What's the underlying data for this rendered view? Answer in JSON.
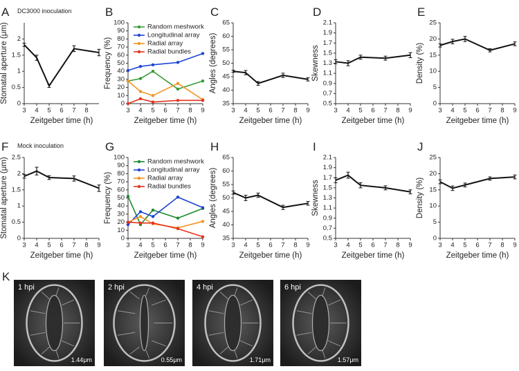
{
  "chart_data": [
    {
      "type": "line",
      "label": "A",
      "annotation": "DC3000 inoculation",
      "xlabel": "Zeitgeber time (h)",
      "ylabel": "Stomatal aperture (μm)",
      "x": [
        3,
        4,
        5,
        7,
        9
      ],
      "xlim": [
        3,
        9
      ],
      "xticks": [
        3,
        4,
        5,
        6,
        7,
        8
      ],
      "ylim": [
        0,
        2.5
      ],
      "yticks": [
        0,
        0.5,
        1,
        1.5,
        2
      ],
      "series": [
        {
          "color": "#111111",
          "values": [
            1.82,
            1.42,
            0.55,
            1.7,
            1.58
          ],
          "errors": [
            0.05,
            0.08,
            0.05,
            0.09,
            0.1
          ]
        }
      ]
    },
    {
      "type": "line",
      "label": "B",
      "xlabel": "Zeitgeber time (h)",
      "ylabel": "Frequency (%)",
      "x": [
        3,
        4,
        5,
        7,
        9
      ],
      "xlim": [
        3,
        9
      ],
      "xticks": [
        3,
        4,
        5,
        6,
        7,
        8,
        9
      ],
      "ylim": [
        0,
        100
      ],
      "yticks": [
        0,
        10,
        20,
        30,
        40,
        50,
        60,
        70,
        80,
        90,
        100
      ],
      "legend": "upper left",
      "series": [
        {
          "name": "Random meshwork",
          "color": "#3a9a35",
          "values": [
            28,
            31,
            40,
            18,
            28
          ]
        },
        {
          "name": "Longitudinal array",
          "color": "#1f44d6",
          "values": [
            41,
            46,
            48,
            51,
            62
          ]
        },
        {
          "name": "Radial array",
          "color": "#f39325",
          "values": [
            28,
            15,
            10,
            25,
            5
          ]
        },
        {
          "name": "Radial bundles",
          "color": "#e2331e",
          "values": [
            0,
            6,
            2,
            4,
            4
          ]
        }
      ]
    },
    {
      "type": "line",
      "label": "C",
      "xlabel": "Zeitgeber time (h)",
      "ylabel": "Angles (degrees)",
      "x": [
        3,
        4,
        5,
        7,
        9
      ],
      "xlim": [
        3,
        9
      ],
      "xticks": [
        3,
        4,
        5,
        6,
        7,
        8,
        9
      ],
      "ylim": [
        35,
        65
      ],
      "yticks": [
        35,
        40,
        45,
        50,
        55,
        60,
        65
      ],
      "series": [
        {
          "color": "#111111",
          "values": [
            47,
            46.5,
            42.5,
            45.5,
            44
          ],
          "errors": [
            0.4,
            0.8,
            0.7,
            0.8,
            0.6
          ]
        }
      ]
    },
    {
      "type": "line",
      "label": "D",
      "xlabel": "Zeitgeber time (h)",
      "ylabel": "Skewness",
      "x": [
        3,
        4,
        5,
        7,
        9
      ],
      "xlim": [
        3,
        9
      ],
      "xticks": [
        3,
        4,
        5,
        6,
        7,
        8,
        9
      ],
      "ylim": [
        0.5,
        2.1
      ],
      "yticks": [
        0.5,
        0.7,
        0.9,
        1.1,
        1.3,
        1.5,
        1.7,
        1.9,
        2.1
      ],
      "series": [
        {
          "color": "#111111",
          "values": [
            1.33,
            1.3,
            1.42,
            1.4,
            1.46
          ],
          "errors": [
            0.04,
            0.05,
            0.04,
            0.04,
            0.05
          ]
        }
      ]
    },
    {
      "type": "line",
      "label": "E",
      "xlabel": "Zeitgeber time (h)",
      "ylabel": "Density (%)",
      "x": [
        3,
        4,
        5,
        7,
        9
      ],
      "xlim": [
        3,
        9
      ],
      "xticks": [
        3,
        4,
        5,
        6,
        7,
        8,
        9
      ],
      "ylim": [
        0,
        25
      ],
      "yticks": [
        0,
        5,
        10,
        15,
        20,
        25
      ],
      "series": [
        {
          "color": "#111111",
          "values": [
            18,
            19.2,
            20,
            16.5,
            18.5
          ],
          "errors": [
            0.5,
            0.7,
            0.8,
            0.5,
            0.6
          ]
        }
      ]
    },
    {
      "type": "line",
      "label": "F",
      "annotation": "Mock inoculation",
      "xlabel": "Zeitgeber time (h)",
      "ylabel": "Stomatal aperture (μm)",
      "x": [
        3,
        4,
        5,
        7,
        9
      ],
      "xlim": [
        3,
        9
      ],
      "xticks": [
        3,
        4,
        5,
        6,
        7,
        8,
        9
      ],
      "ylim": [
        0,
        2.5
      ],
      "yticks": [
        0,
        0.5,
        1,
        1.5,
        2,
        2.5
      ],
      "series": [
        {
          "color": "#111111",
          "values": [
            1.92,
            2.08,
            1.88,
            1.85,
            1.55
          ],
          "errors": [
            0.06,
            0.12,
            0.06,
            0.08,
            0.1
          ]
        }
      ]
    },
    {
      "type": "line",
      "label": "G",
      "xlabel": "Zeitgeber time (h)",
      "ylabel": "Frequency (%)",
      "x": [
        3,
        4,
        5,
        7,
        9
      ],
      "xlim": [
        3,
        9
      ],
      "xticks": [
        3,
        4,
        5,
        6,
        7,
        8,
        9
      ],
      "ylim": [
        0,
        100
      ],
      "yticks": [
        0,
        10,
        20,
        30,
        40,
        50,
        60,
        70,
        80,
        90,
        100
      ],
      "legend": "upper left",
      "series": [
        {
          "name": "Random meshwork",
          "color": "#1e8a2e",
          "values": [
            52,
            17,
            35,
            25,
            37
          ]
        },
        {
          "name": "Longitudinal array",
          "color": "#1f44d6",
          "values": [
            17,
            33,
            27,
            51,
            38
          ]
        },
        {
          "name": "Radial array",
          "color": "#f39325",
          "values": [
            20,
            27,
            18,
            13,
            21
          ]
        },
        {
          "name": "Radial bundles",
          "color": "#e2331e",
          "values": [
            20,
            19,
            19,
            12,
            2
          ]
        }
      ]
    },
    {
      "type": "line",
      "label": "H",
      "xlabel": "Zeitgeber time (h)",
      "ylabel": "Angles (degrees)",
      "x": [
        3,
        4,
        5,
        7,
        9
      ],
      "xlim": [
        3,
        9
      ],
      "xticks": [
        3,
        4,
        5,
        6,
        7,
        8,
        9
      ],
      "ylim": [
        35,
        65
      ],
      "yticks": [
        35,
        40,
        45,
        50,
        55,
        60,
        65
      ],
      "series": [
        {
          "color": "#111111",
          "values": [
            52,
            50,
            51,
            46.5,
            48
          ],
          "errors": [
            0.6,
            1,
            0.8,
            0.8,
            0.7
          ]
        }
      ]
    },
    {
      "type": "line",
      "label": "I",
      "xlabel": "Zeitgeber time (h)",
      "ylabel": "Skewness",
      "x": [
        3,
        4,
        5,
        7,
        9
      ],
      "xlim": [
        3,
        9
      ],
      "xticks": [
        3,
        4,
        5,
        6,
        7,
        8,
        9
      ],
      "ylim": [
        0.5,
        2.1
      ],
      "yticks": [
        0.5,
        0.7,
        0.9,
        1.1,
        1.3,
        1.5,
        1.7,
        1.9,
        2.1
      ],
      "series": [
        {
          "color": "#111111",
          "values": [
            1.65,
            1.75,
            1.55,
            1.5,
            1.42
          ],
          "errors": [
            0.05,
            0.06,
            0.05,
            0.04,
            0.04
          ]
        }
      ]
    },
    {
      "type": "line",
      "label": "J",
      "xlabel": "Zeitgeber time (h)",
      "ylabel": "Density (%)",
      "x": [
        3,
        4,
        5,
        7,
        9
      ],
      "xlim": [
        3,
        9
      ],
      "xticks": [
        3,
        4,
        5,
        6,
        7,
        8,
        9
      ],
      "ylim": [
        0,
        25
      ],
      "yticks": [
        0,
        5,
        10,
        15,
        20,
        25
      ],
      "series": [
        {
          "color": "#111111",
          "values": [
            17.5,
            15.5,
            16.5,
            18.5,
            19
          ],
          "errors": [
            0.6,
            0.7,
            0.6,
            0.5,
            0.6
          ]
        }
      ]
    }
  ],
  "panel_k": {
    "label": "K",
    "images": [
      {
        "time": "1 hpi",
        "scale": "1.44μm"
      },
      {
        "time": "2 hpi",
        "scale": "0.55μm"
      },
      {
        "time": "4 hpi",
        "scale": "1.71μm"
      },
      {
        "time": "6 hpi",
        "scale": "1.57μm"
      }
    ]
  }
}
